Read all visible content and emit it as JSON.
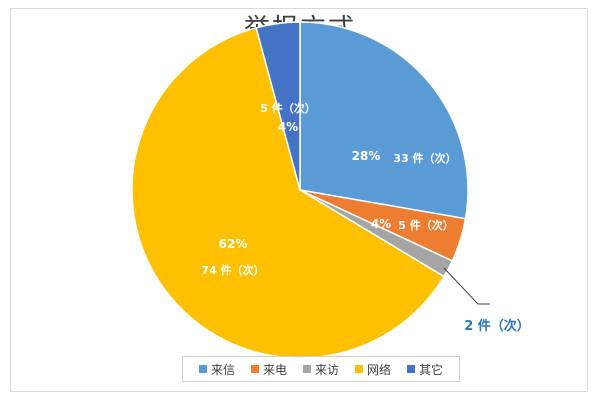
{
  "chart_data": {
    "type": "pie",
    "title": "举报方式",
    "categories": [
      "来信",
      "来电",
      "来访",
      "网络",
      "其它"
    ],
    "values": [
      33,
      5,
      2,
      74,
      5
    ],
    "percent_labels": [
      "28%",
      "4%",
      "",
      "62%",
      "4%"
    ],
    "count_labels": [
      "33 件（次）",
      "5 件（次）",
      "2 件（次）",
      "74 件（次）",
      "5 件（次）"
    ],
    "colors": [
      "#5B9BD5",
      "#ED7D31",
      "#A5A5A5",
      "#FFC000",
      "#4472C4"
    ],
    "legend_position": "bottom",
    "start_angle_deg": 0,
    "direction": "clockwise"
  }
}
